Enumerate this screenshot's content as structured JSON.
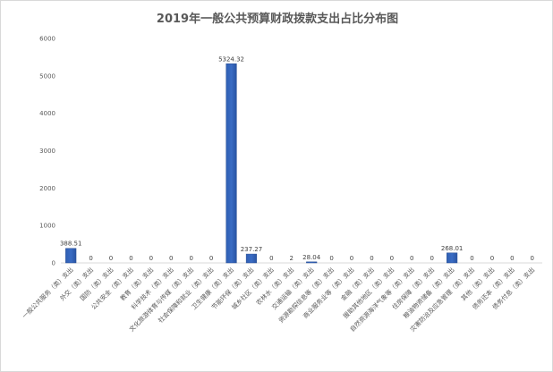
{
  "chart_data": {
    "type": "bar",
    "title": "2019年一般公共预算财政拨款支出占比分布图",
    "xlabel": "",
    "ylabel": "",
    "ylim": [
      0,
      6000
    ],
    "yticks": [
      0,
      1000,
      2000,
      3000,
      4000,
      5000,
      6000
    ],
    "grid": false,
    "legend": "none",
    "bar_color": "#3a6cc4",
    "categories": [
      "一般公共服务（类）支出",
      "外交（类）支出",
      "国防（类）支出",
      "公共安全（类）支出",
      "教育（类）支出",
      "科学技术（类）支出",
      "文化旅游体育与传媒（类）支出",
      "社会保障和就业（类）支出",
      "卫生健康（类）支出",
      "节能环保（类）支出",
      "城乡社区（类）支出",
      "农林水（类）支出",
      "交通运输（类）支出",
      "资源勘探信息等（类）支出",
      "商业服务业等（类）支出",
      "金融（类）支出",
      "援助其他地区（类）支出",
      "自然资源海洋气象等（类）支出",
      "住房保障（类）支出",
      "粮油物资储备（类）支出",
      "灾害防治及应急管理（类）支出",
      "其他（类）支出",
      "债务还本（类）支出",
      "债务付息（类）支出"
    ],
    "values": [
      388.51,
      0,
      0,
      0,
      0,
      0,
      0,
      0,
      5324.32,
      237.27,
      0,
      2,
      28.04,
      0,
      0,
      0,
      0,
      0,
      0,
      268.01,
      0,
      0,
      0,
      0
    ],
    "data_labels": [
      "388.51",
      "0",
      "0",
      "0",
      "0",
      "0",
      "0",
      "0",
      "5324.32",
      "237.27",
      "0",
      "2",
      "28.04",
      "0",
      "0",
      "0",
      "0",
      "0",
      "0",
      "268.01",
      "0",
      "0",
      "0",
      "0"
    ]
  }
}
